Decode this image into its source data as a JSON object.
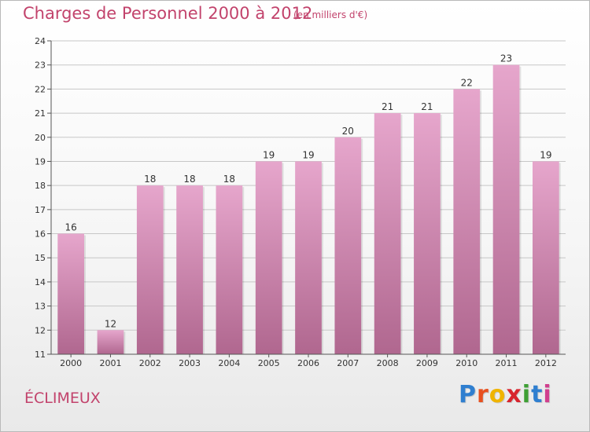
{
  "header": {
    "title": "Charges de Personnel 2000 à 2012",
    "subtitle": "(en milliers d'€)"
  },
  "footer": {
    "commune": "ÉCLIMEUX",
    "brand": [
      "P",
      "r",
      "o",
      "x",
      "i",
      "t",
      "i"
    ],
    "brand_colors": [
      "#2f7fd0",
      "#e8501f",
      "#f0b400",
      "#d8242d",
      "#3d9f33",
      "#2f7fd0",
      "#d03f8e"
    ]
  },
  "colors": {
    "bar_top": "#e6a6cc",
    "bar_bottom": "#b0678f",
    "gridline": "#c7c7c7",
    "title": "#c2436c"
  },
  "chart_data": {
    "type": "bar",
    "categories": [
      "2000",
      "2001",
      "2002",
      "2003",
      "2004",
      "2005",
      "2006",
      "2007",
      "2008",
      "2009",
      "2010",
      "2011",
      "2012"
    ],
    "values": [
      16,
      12,
      18,
      18,
      18,
      19,
      19,
      20,
      21,
      21,
      22,
      23,
      19
    ],
    "title": "Charges de Personnel 2000 à 2012",
    "subtitle": "(en milliers d'€)",
    "xlabel": "",
    "ylabel": "",
    "ylim": [
      11,
      24
    ],
    "yticks": [
      11,
      12,
      13,
      14,
      15,
      16,
      17,
      18,
      19,
      20,
      21,
      22,
      23,
      24
    ],
    "grid": true,
    "legend": "none"
  }
}
